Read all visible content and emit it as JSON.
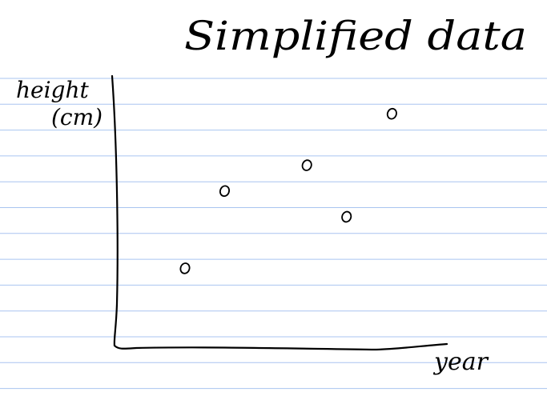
{
  "chart_data": {
    "type": "scatter",
    "title": "Simplified data",
    "xlabel": "year",
    "ylabel": "height (cm)",
    "grid": false,
    "legend": "none",
    "xlim": [
      0,
      10
    ],
    "ylim": [
      0,
      10
    ],
    "points": [
      {
        "x": 2.4,
        "y": 3.0
      },
      {
        "x": 3.8,
        "y": 6.0
      },
      {
        "x": 6.7,
        "y": 7.0
      },
      {
        "x": 8.1,
        "y": 5.0
      },
      {
        "x": 9.7,
        "y": 9.0
      }
    ]
  },
  "colors": {
    "ruled_line": "#a9c4f0",
    "ink": "#000000"
  }
}
